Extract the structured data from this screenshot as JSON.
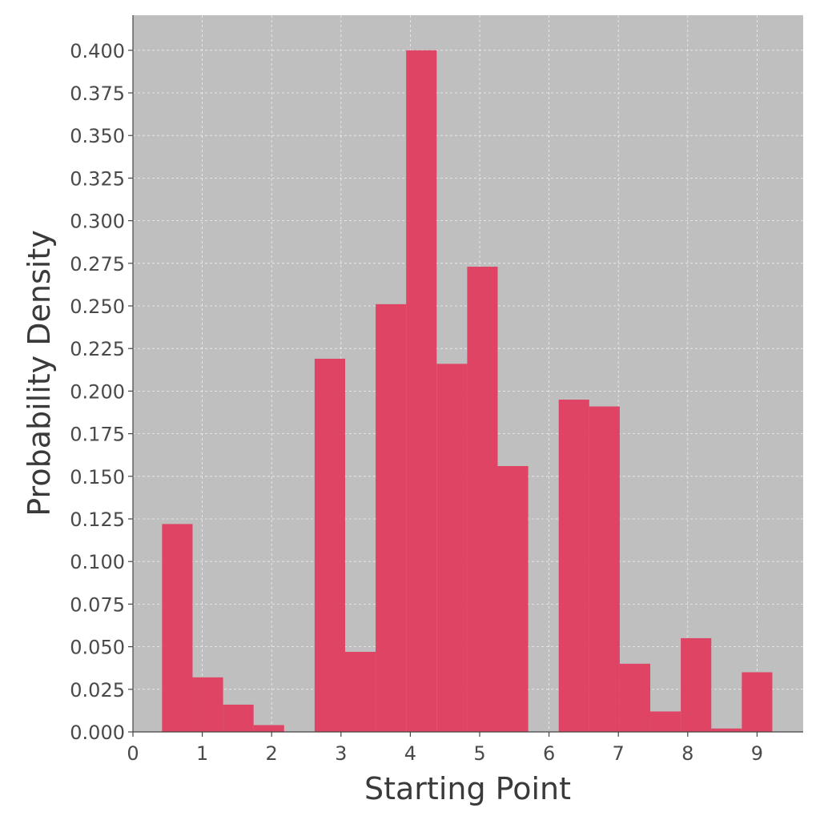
{
  "chart_data": {
    "type": "bar",
    "subtype": "histogram",
    "xlabel": "Starting Point",
    "ylabel": "Probability Density",
    "xlim": [
      0,
      9.7
    ],
    "ylim": [
      0,
      0.42
    ],
    "x_ticks": [
      0,
      1,
      2,
      3,
      4,
      5,
      6,
      7,
      8,
      9
    ],
    "y_ticks": [
      0.0,
      0.025,
      0.05,
      0.075,
      0.1,
      0.125,
      0.15,
      0.175,
      0.2,
      0.225,
      0.25,
      0.275,
      0.3,
      0.325,
      0.35,
      0.375,
      0.4
    ],
    "y_tick_labels": [
      "0.000",
      "0.025",
      "0.050",
      "0.075",
      "0.100",
      "0.125",
      "0.150",
      "0.175",
      "0.200",
      "0.225",
      "0.250",
      "0.275",
      "0.300",
      "0.325",
      "0.350",
      "0.375",
      "0.400"
    ],
    "grid": true,
    "bar_color": "#E03E60",
    "plot_background": "#BFBFBF",
    "bins": [
      {
        "x0": 0.42,
        "x1": 0.86,
        "value": 0.122
      },
      {
        "x0": 0.86,
        "x1": 1.3,
        "value": 0.032
      },
      {
        "x0": 1.3,
        "x1": 1.74,
        "value": 0.016
      },
      {
        "x0": 1.74,
        "x1": 2.18,
        "value": 0.004
      },
      {
        "x0": 2.18,
        "x1": 2.62,
        "value": 0.0
      },
      {
        "x0": 2.62,
        "x1": 3.06,
        "value": 0.219
      },
      {
        "x0": 3.06,
        "x1": 3.5,
        "value": 0.047
      },
      {
        "x0": 3.5,
        "x1": 3.94,
        "value": 0.251
      },
      {
        "x0": 3.94,
        "x1": 4.38,
        "value": 0.4
      },
      {
        "x0": 4.38,
        "x1": 4.82,
        "value": 0.216
      },
      {
        "x0": 4.82,
        "x1": 5.26,
        "value": 0.273
      },
      {
        "x0": 5.26,
        "x1": 5.7,
        "value": 0.156
      },
      {
        "x0": 5.7,
        "x1": 6.14,
        "value": 0.0
      },
      {
        "x0": 6.14,
        "x1": 6.58,
        "value": 0.195
      },
      {
        "x0": 6.58,
        "x1": 7.02,
        "value": 0.191
      },
      {
        "x0": 7.02,
        "x1": 7.46,
        "value": 0.04
      },
      {
        "x0": 7.46,
        "x1": 7.9,
        "value": 0.012
      },
      {
        "x0": 7.9,
        "x1": 8.34,
        "value": 0.055
      },
      {
        "x0": 8.34,
        "x1": 8.78,
        "value": 0.002
      },
      {
        "x0": 8.78,
        "x1": 9.22,
        "value": 0.035
      }
    ]
  }
}
